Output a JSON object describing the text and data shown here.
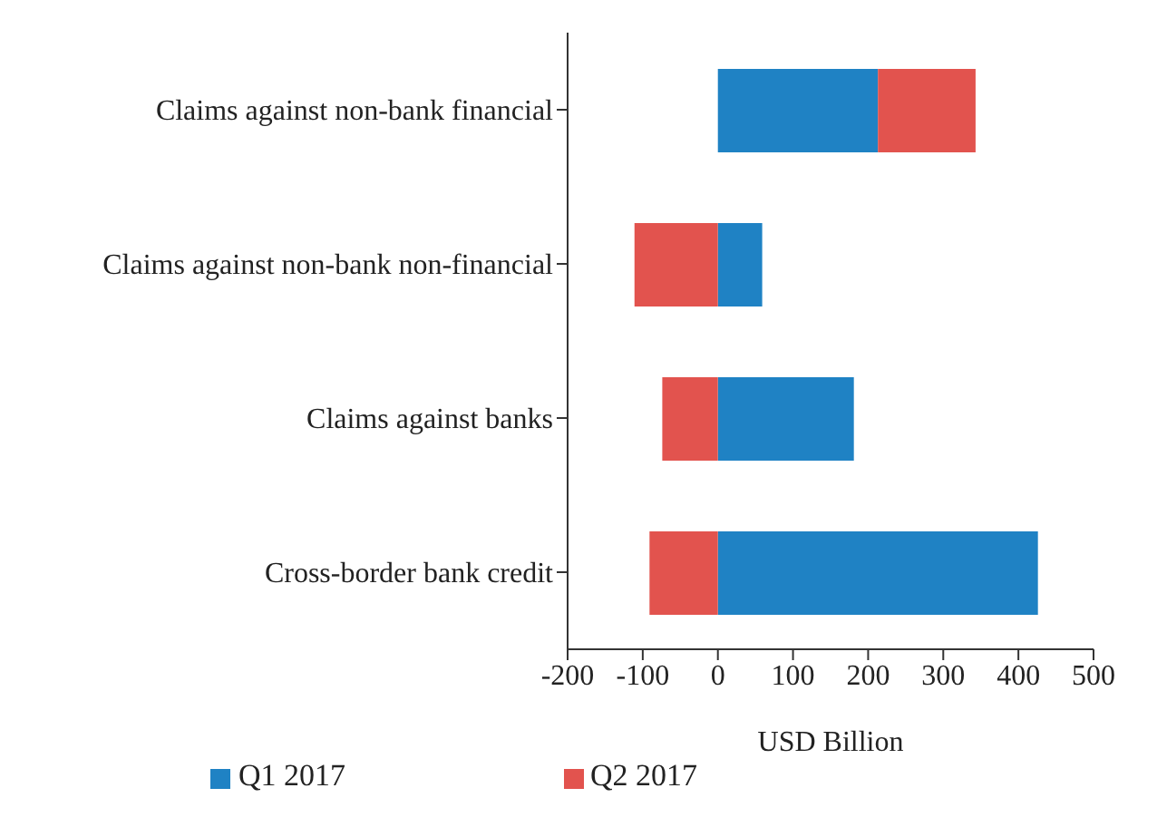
{
  "chart_data": {
    "type": "bar",
    "orientation": "horizontal",
    "stacked": true,
    "xlabel": "USD Billion",
    "categories": [
      "Claims against non-bank financial",
      "Claims against non-bank non-financial",
      "Claims against banks",
      "Cross-border bank credit"
    ],
    "series": [
      {
        "name": "Q1 2017",
        "color": "#1f82c4",
        "values": [
          213,
          59,
          181,
          426
        ]
      },
      {
        "name": "Q2 2017",
        "color": "#e2534e",
        "values": [
          130,
          -111,
          -74,
          -91
        ]
      }
    ],
    "xlim": [
      -200,
      500
    ],
    "xticks": [
      -200,
      -100,
      0,
      100,
      200,
      300,
      400,
      500
    ],
    "grid": false,
    "legend": "bottom"
  }
}
